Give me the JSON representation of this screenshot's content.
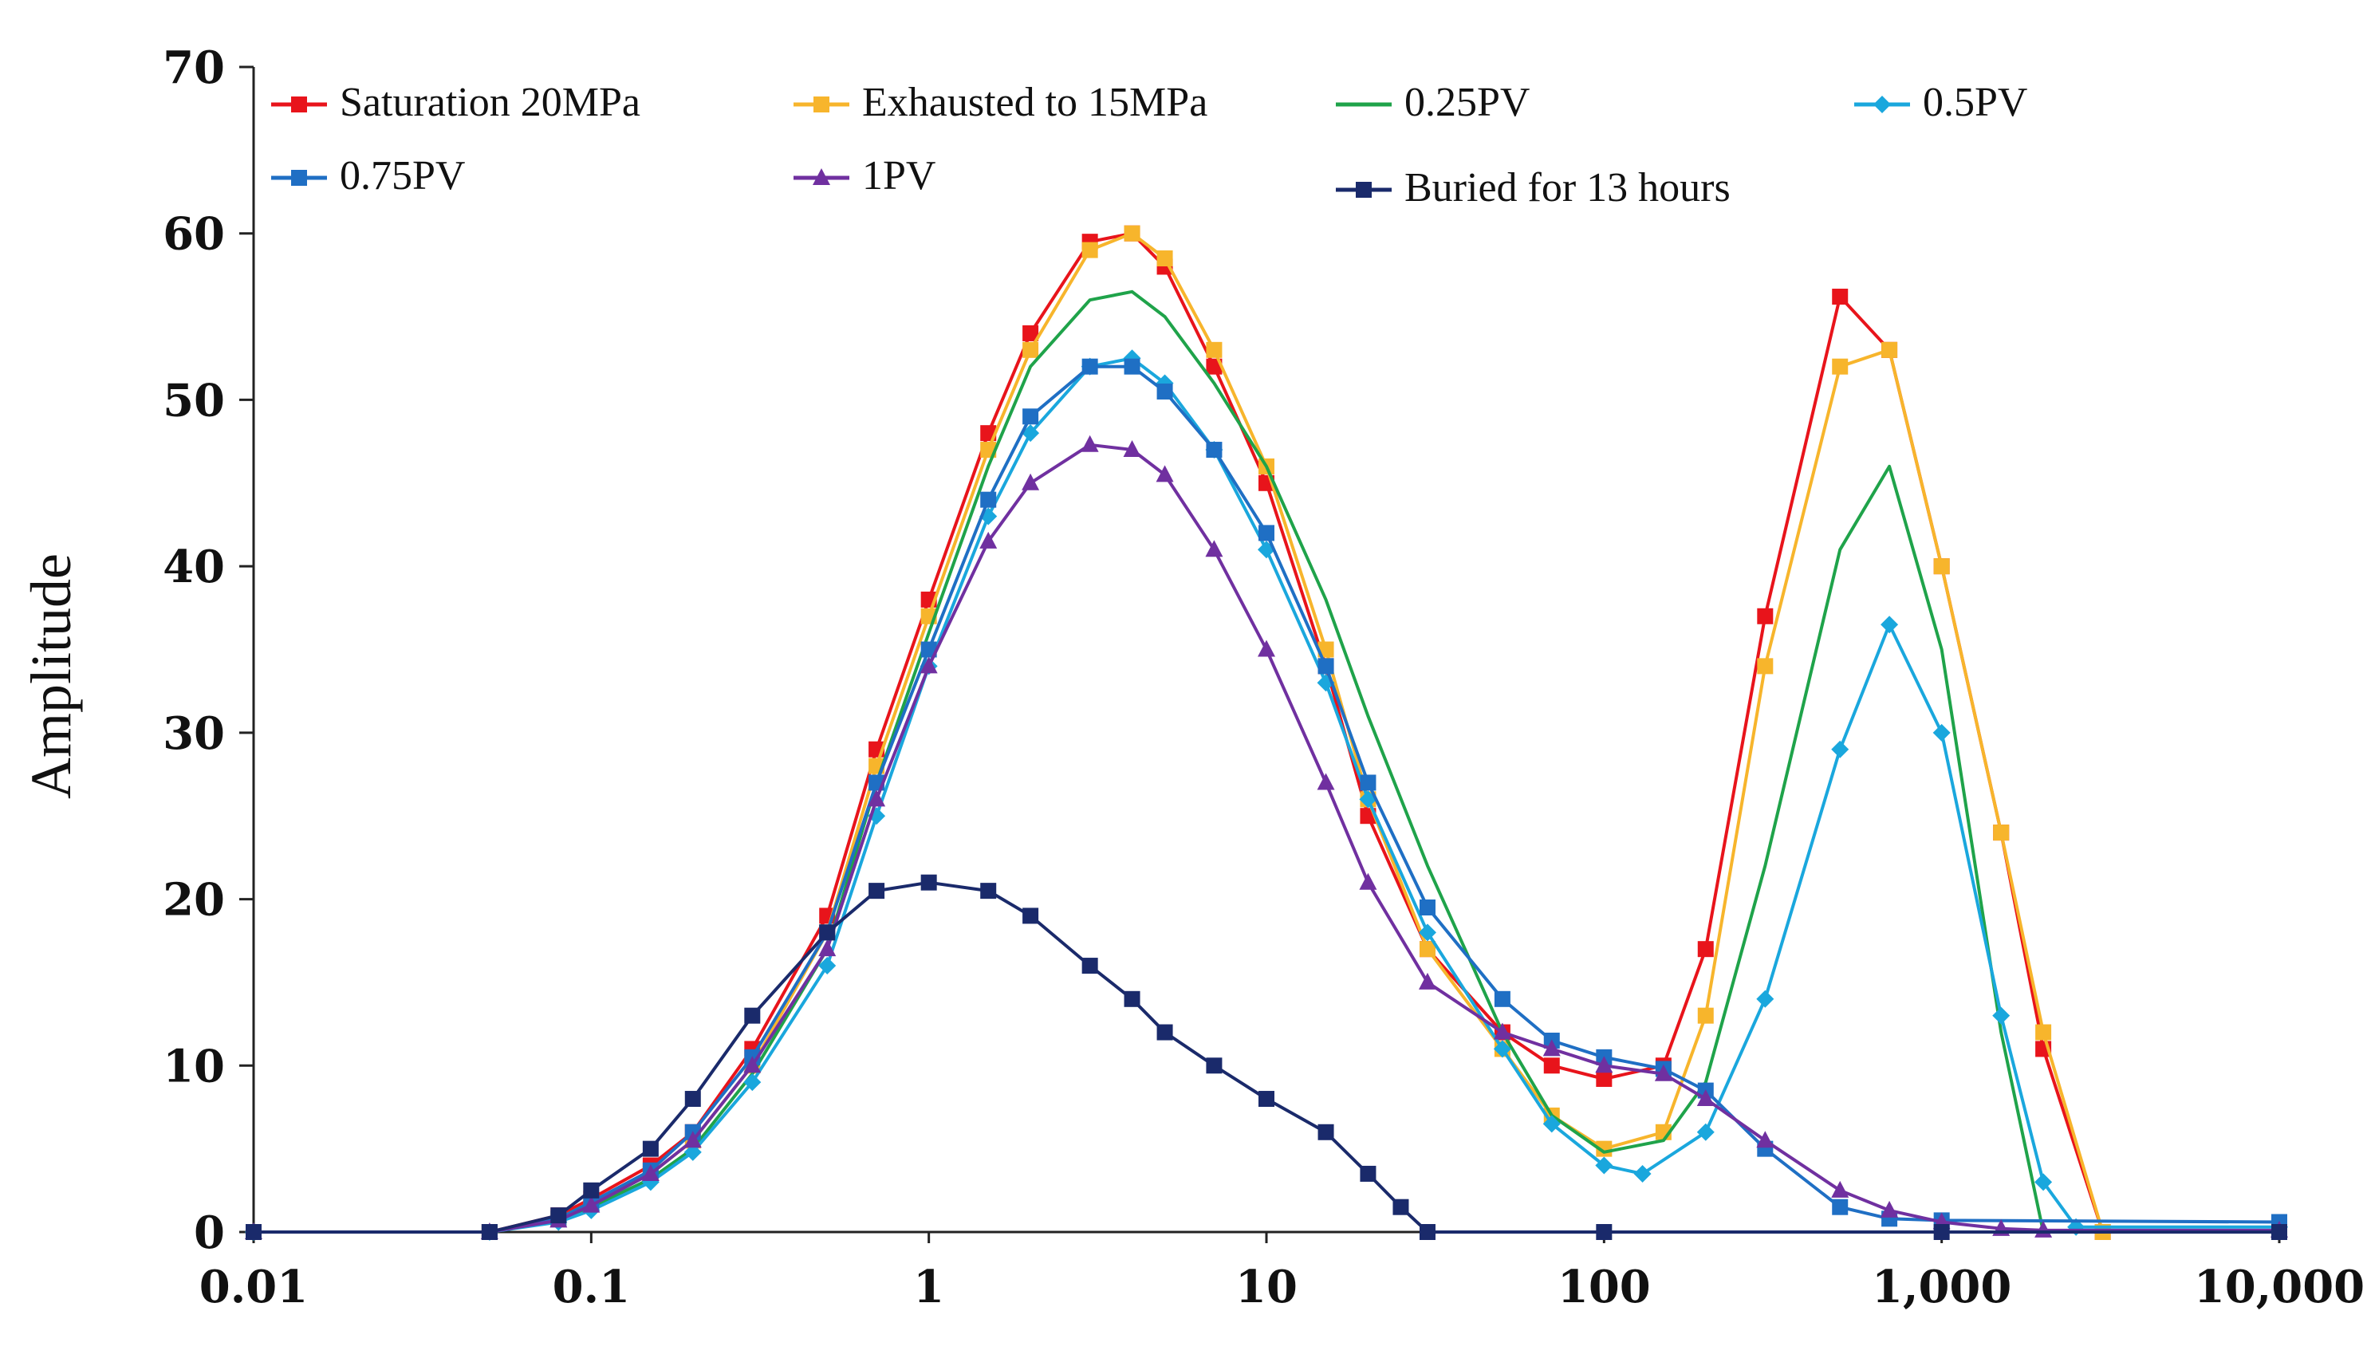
{
  "chart_data": {
    "type": "line",
    "xscale": "log",
    "xlim": [
      0.01,
      10000
    ],
    "ylim": [
      0,
      70
    ],
    "ylabel": "Amplitude",
    "xlabel": "",
    "xticks": [
      0.01,
      0.1,
      1,
      10,
      100,
      1000,
      10000
    ],
    "xtick_labels": [
      "0.01",
      "0.1",
      "1",
      "10",
      "100",
      "1,000",
      "10,000"
    ],
    "yticks": [
      0,
      10,
      20,
      30,
      40,
      50,
      60,
      70
    ],
    "ytick_labels": [
      "0",
      "10",
      "20",
      "30",
      "40",
      "50",
      "60",
      "70"
    ],
    "series": [
      {
        "name": "Saturation 20MPa",
        "color": "#e8141b",
        "marker": "square",
        "x": [
          0.01,
          0.05,
          0.08,
          0.1,
          0.15,
          0.2,
          0.3,
          0.5,
          0.7,
          1,
          1.5,
          2,
          3,
          4,
          5,
          7,
          10,
          15,
          20,
          30,
          50,
          70,
          100,
          150,
          200,
          300,
          500,
          700,
          1000,
          1500,
          2000,
          3000,
          10000
        ],
        "y": [
          0,
          0,
          1,
          2,
          4,
          6,
          11,
          19,
          29,
          38,
          48,
          54,
          59.5,
          60,
          58,
          52,
          45,
          34,
          25,
          17,
          12,
          10,
          9.2,
          10,
          17,
          37,
          56.2,
          53,
          40,
          24,
          11,
          0,
          0
        ]
      },
      {
        "name": "Exhausted to 15MPa",
        "color": "#f7b52c",
        "marker": "square",
        "x": [
          0.01,
          0.05,
          0.08,
          0.1,
          0.15,
          0.2,
          0.3,
          0.5,
          0.7,
          1,
          1.5,
          2,
          3,
          4,
          5,
          7,
          10,
          15,
          20,
          30,
          50,
          70,
          100,
          150,
          200,
          300,
          500,
          700,
          1000,
          1500,
          2000,
          3000,
          10000
        ],
        "y": [
          0,
          0,
          0.8,
          1.8,
          3.5,
          5.5,
          10,
          18,
          28,
          37,
          47,
          53,
          59,
          60,
          58.5,
          53,
          46,
          35,
          26,
          17,
          11,
          7,
          5,
          6,
          13,
          34,
          52,
          53,
          40,
          24,
          12,
          0,
          0
        ]
      },
      {
        "name": "0.25PV",
        "color": "#1fa34a",
        "marker": "none",
        "x": [
          0.01,
          0.05,
          0.08,
          0.1,
          0.15,
          0.2,
          0.3,
          0.5,
          0.7,
          1,
          1.5,
          2,
          3,
          4,
          5,
          7,
          10,
          15,
          20,
          30,
          50,
          70,
          100,
          150,
          200,
          300,
          500,
          700,
          1000,
          1500,
          2000,
          10000
        ],
        "y": [
          0,
          0,
          0.7,
          1.5,
          3.2,
          5,
          9.5,
          17,
          27,
          36,
          46,
          52,
          56,
          56.5,
          55,
          51,
          46,
          38,
          31,
          22,
          12,
          7,
          4.8,
          5.5,
          9,
          22,
          41,
          46,
          35,
          12,
          0,
          0
        ]
      },
      {
        "name": "0.5PV",
        "color": "#1aa7dd",
        "marker": "diamond",
        "x": [
          0.01,
          0.05,
          0.08,
          0.1,
          0.15,
          0.2,
          0.3,
          0.5,
          0.7,
          1,
          1.5,
          2,
          3,
          4,
          5,
          7,
          10,
          15,
          20,
          30,
          50,
          70,
          100,
          130,
          200,
          300,
          500,
          700,
          1000,
          1500,
          2000,
          2500,
          10000
        ],
        "y": [
          0,
          0,
          0.6,
          1.3,
          3,
          4.8,
          9,
          16,
          25,
          34,
          43,
          48,
          52,
          52.5,
          51,
          47,
          41,
          33,
          26,
          18,
          11,
          6.5,
          4,
          3.5,
          6,
          14,
          29,
          36.5,
          30,
          13,
          3,
          0.3,
          0.3
        ]
      },
      {
        "name": "0.75PV",
        "color": "#1f6fc4",
        "marker": "square",
        "x": [
          0.01,
          0.05,
          0.08,
          0.1,
          0.15,
          0.2,
          0.3,
          0.5,
          0.7,
          1,
          1.5,
          2,
          3,
          4,
          5,
          7,
          10,
          15,
          20,
          30,
          50,
          70,
          100,
          150,
          200,
          300,
          500,
          700,
          1000,
          10000
        ],
        "y": [
          0,
          0,
          0.8,
          1.8,
          3.7,
          6,
          10.5,
          18,
          27,
          35,
          44,
          49,
          52,
          52,
          50.5,
          47,
          42,
          34,
          27,
          19.5,
          14,
          11.5,
          10.5,
          9.8,
          8.5,
          5,
          1.5,
          0.8,
          0.7,
          0.6
        ]
      },
      {
        "name": "1PV",
        "color": "#7030a0",
        "marker": "triangle",
        "x": [
          0.01,
          0.05,
          0.08,
          0.1,
          0.15,
          0.2,
          0.3,
          0.5,
          0.7,
          1,
          1.5,
          2,
          3,
          4,
          5,
          7,
          10,
          15,
          20,
          30,
          50,
          70,
          100,
          150,
          200,
          300,
          500,
          700,
          1000,
          1500,
          2000,
          10000
        ],
        "y": [
          0,
          0,
          0.7,
          1.6,
          3.5,
          5.5,
          10,
          17,
          26,
          34,
          41.5,
          45,
          47.3,
          47,
          45.5,
          41,
          35,
          27,
          21,
          15,
          12,
          11,
          10,
          9.5,
          8,
          5.5,
          2.5,
          1.3,
          0.6,
          0.2,
          0.1,
          0.1
        ]
      },
      {
        "name": "Buried for 13 hours",
        "color": "#1a2a6b",
        "marker": "square",
        "x": [
          0.01,
          0.05,
          0.08,
          0.1,
          0.15,
          0.2,
          0.3,
          0.5,
          0.7,
          1,
          1.5,
          2,
          3,
          4,
          5,
          7,
          10,
          15,
          20,
          25,
          30,
          100,
          1000,
          10000
        ],
        "y": [
          0,
          0,
          1,
          2.5,
          5,
          8,
          13,
          18,
          20.5,
          21,
          20.5,
          19,
          16,
          14,
          12,
          10,
          8,
          6,
          3.5,
          1.5,
          0,
          0,
          0,
          0
        ]
      }
    ]
  }
}
